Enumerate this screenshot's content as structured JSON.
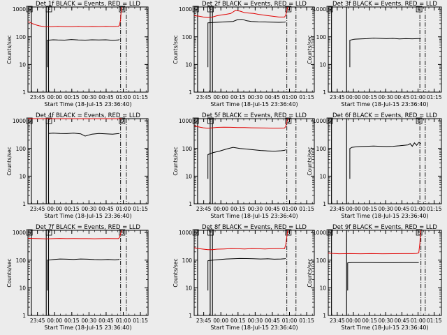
{
  "colors": {
    "background": "#ececec",
    "events": "#000000",
    "lld": "#e00000",
    "axes": "#000000"
  },
  "common": {
    "ylabel": "Counts/sec",
    "xlabel": "Start Time (18-Jul-15 23:36:40)",
    "x_ticks": [
      "23:45",
      "00:00",
      "00:15",
      "00:30",
      "00:45",
      "01:00",
      "01:15"
    ],
    "x_tick_values_min": [
      8.33,
      23.33,
      38.33,
      53.33,
      68.33,
      83.33,
      98.33
    ],
    "y_ticks": [
      "1",
      "10",
      "100",
      "1000"
    ],
    "y_tick_values": [
      1,
      10,
      100,
      1000
    ],
    "y_scale": "log",
    "ylim": [
      1,
      1200
    ],
    "xlim_min": [
      0,
      105
    ],
    "marker_S": "S",
    "marker_F": "F"
  },
  "chart_data": [
    {
      "type": "line",
      "title": "Det 1f BLACK = Events, RED = LLD",
      "series": [
        {
          "name": "Events",
          "color": "#000000",
          "x": [
            17,
            22,
            26,
            32,
            38,
            44,
            50,
            56,
            62,
            68,
            74,
            79,
            80
          ],
          "y": [
            75,
            78,
            77,
            76,
            80,
            77,
            76,
            78,
            77,
            78,
            75,
            77,
            80
          ]
        },
        {
          "name": "LLD",
          "color": "#e00000",
          "x": [
            0,
            2,
            4,
            7,
            10,
            14,
            20,
            26,
            32,
            38,
            44,
            50,
            56,
            62,
            68,
            74,
            79,
            80,
            81,
            81.5,
            82
          ],
          "y": [
            350,
            330,
            300,
            270,
            250,
            235,
            230,
            240,
            235,
            232,
            238,
            233,
            236,
            235,
            238,
            236,
            240,
            260,
            420,
            900,
            1200
          ]
        }
      ]
    },
    {
      "type": "line",
      "title": "Det 2f BLACK = Events, RED = LLD",
      "series": [
        {
          "name": "Events",
          "color": "#000000",
          "x": [
            12,
            16,
            22,
            28,
            34,
            38,
            42,
            46,
            50,
            56,
            62,
            68,
            74,
            79,
            80
          ],
          "y": [
            320,
            330,
            340,
            350,
            360,
            420,
            430,
            380,
            360,
            350,
            345,
            340,
            335,
            340,
            345
          ]
        },
        {
          "name": "LLD",
          "color": "#e00000",
          "x": [
            0,
            4,
            8,
            12,
            16,
            20,
            24,
            28,
            32,
            36,
            40,
            44,
            48,
            52,
            56,
            62,
            68,
            74,
            79,
            80,
            81,
            81.5,
            82
          ],
          "y": [
            580,
            560,
            520,
            500,
            520,
            580,
            620,
            650,
            700,
            900,
            850,
            750,
            720,
            700,
            650,
            600,
            560,
            520,
            520,
            600,
            900,
            1100,
            1200
          ]
        }
      ]
    },
    {
      "type": "line",
      "title": "Det 3f BLACK = Events, RED = LLD",
      "series": [
        {
          "name": "Events",
          "color": "#000000",
          "x": [
            20,
            24,
            30,
            36,
            42,
            48,
            54,
            60,
            66,
            72,
            78,
            84,
            86
          ],
          "y": [
            75,
            82,
            84,
            86,
            90,
            88,
            86,
            88,
            84,
            86,
            85,
            87,
            88
          ]
        }
      ]
    },
    {
      "type": "line",
      "title": "Det 4f BLACK = Events, RED = LLD",
      "series": [
        {
          "name": "Events",
          "color": "#000000",
          "x": [
            18,
            22,
            28,
            34,
            40,
            46,
            50,
            56,
            62,
            68,
            74,
            79,
            80
          ],
          "y": [
            350,
            360,
            350,
            345,
            360,
            340,
            280,
            330,
            350,
            340,
            330,
            345,
            350
          ]
        },
        {
          "name": "LLD",
          "color": "#e00000",
          "x": [
            0,
            4,
            10,
            16,
            22,
            28,
            34,
            40,
            46,
            52,
            58,
            64,
            70,
            76,
            79,
            80,
            81,
            81.5,
            82
          ],
          "y": [
            2000,
            1950,
            1900,
            1900,
            1920,
            1900,
            1910,
            1900,
            1890,
            1900,
            1910,
            1900,
            1900,
            1905,
            1910,
            2200,
            4000,
            8000,
            12000
          ]
        }
      ]
    },
    {
      "type": "line",
      "title": "Det 5f BLACK = Events, RED = LLD",
      "series": [
        {
          "name": "Events",
          "color": "#000000",
          "x": [
            12,
            16,
            22,
            28,
            34,
            40,
            46,
            52,
            58,
            64,
            70,
            76,
            79,
            80
          ],
          "y": [
            60,
            70,
            80,
            95,
            110,
            100,
            95,
            90,
            85,
            82,
            80,
            83,
            86,
            90
          ]
        },
        {
          "name": "LLD",
          "color": "#e00000",
          "x": [
            0,
            4,
            8,
            12,
            16,
            20,
            26,
            32,
            38,
            44,
            50,
            56,
            62,
            68,
            74,
            79,
            80,
            81,
            81.5,
            82
          ],
          "y": [
            650,
            600,
            560,
            540,
            560,
            580,
            590,
            585,
            575,
            570,
            560,
            555,
            550,
            545,
            545,
            550,
            620,
            900,
            1100,
            1200
          ]
        }
      ]
    },
    {
      "type": "line",
      "title": "Det 6f BLACK = Events, RED = LLD",
      "series": [
        {
          "name": "Events",
          "color": "#000000",
          "x": [
            20,
            22,
            26,
            30,
            36,
            42,
            48,
            54,
            60,
            66,
            70,
            74,
            76,
            78,
            80,
            82,
            84,
            86
          ],
          "y": [
            100,
            110,
            115,
            118,
            120,
            122,
            120,
            118,
            120,
            125,
            130,
            135,
            150,
            120,
            160,
            130,
            165,
            150
          ]
        }
      ]
    },
    {
      "type": "line",
      "title": "Det 7f BLACK = Events, RED = LLD",
      "series": [
        {
          "name": "Events",
          "color": "#000000",
          "x": [
            17,
            22,
            28,
            34,
            40,
            46,
            52,
            58,
            64,
            70,
            76,
            79,
            80
          ],
          "y": [
            100,
            105,
            110,
            108,
            106,
            110,
            108,
            105,
            104,
            106,
            103,
            105,
            108
          ]
        },
        {
          "name": "LLD",
          "color": "#e00000",
          "x": [
            0,
            4,
            10,
            16,
            22,
            28,
            34,
            40,
            46,
            52,
            58,
            64,
            70,
            76,
            79,
            80,
            81,
            81.5,
            82
          ],
          "y": [
            620,
            610,
            600,
            590,
            600,
            610,
            600,
            605,
            600,
            600,
            595,
            600,
            605,
            600,
            600,
            650,
            900,
            1100,
            1200
          ]
        }
      ]
    },
    {
      "type": "line",
      "title": "Det 8f BLACK = Events, RED = LLD",
      "series": [
        {
          "name": "Events",
          "color": "#000000",
          "x": [
            12,
            16,
            22,
            28,
            34,
            40,
            46,
            52,
            58,
            64,
            70,
            76,
            79,
            80
          ],
          "y": [
            95,
            100,
            105,
            110,
            112,
            115,
            114,
            112,
            110,
            112,
            108,
            110,
            112,
            115
          ]
        },
        {
          "name": "LLD",
          "color": "#e00000",
          "x": [
            0,
            4,
            8,
            12,
            16,
            20,
            26,
            32,
            38,
            44,
            50,
            56,
            62,
            68,
            74,
            79,
            80,
            81,
            81.5,
            82
          ],
          "y": [
            280,
            260,
            250,
            240,
            240,
            250,
            255,
            260,
            258,
            255,
            260,
            258,
            255,
            258,
            260,
            262,
            350,
            700,
            1000,
            1200
          ]
        }
      ]
    },
    {
      "type": "line",
      "title": "Det 9f BLACK = Events, RED = LLD",
      "series": [
        {
          "name": "Events",
          "color": "#000000",
          "x": [
            18,
            22,
            30,
            40,
            50,
            60,
            70,
            78,
            82,
            84
          ],
          "y": [
            80,
            82,
            82,
            82,
            81,
            81,
            82,
            82,
            82,
            82
          ]
        },
        {
          "name": "LLD",
          "color": "#e00000",
          "x": [
            0,
            4,
            10,
            20,
            30,
            40,
            50,
            60,
            70,
            78,
            82,
            84,
            85,
            85.5,
            86
          ],
          "y": [
            180,
            175,
            170,
            172,
            170,
            172,
            170,
            171,
            172,
            172,
            175,
            185,
            400,
            800,
            1200
          ]
        }
      ]
    }
  ]
}
